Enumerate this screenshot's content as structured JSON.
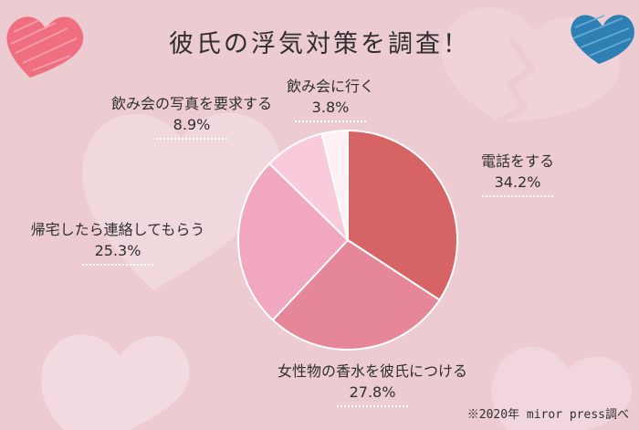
{
  "title": "彼氏の浮気対策を調査！",
  "source_note": "※2020年 miror press調べ",
  "colors": {
    "background": "#eccbd1",
    "soft_heart": "#f3dbe0",
    "left_heart": "#ef6f80",
    "right_heart": "#2e7fb3"
  },
  "chart_data": {
    "type": "pie",
    "title": "彼氏の浮気対策を調査！",
    "slices": [
      {
        "label": "電話をする",
        "value": 34.2,
        "value_label": "34.2%",
        "color": "#d66464"
      },
      {
        "label": "女性物の香水を彼氏につける",
        "value": 27.8,
        "value_label": "27.8%",
        "color": "#e58799"
      },
      {
        "label": "帰宅したら連絡してもらう",
        "value": 25.3,
        "value_label": "25.3%",
        "color": "#f0a7bf"
      },
      {
        "label": "飲み会の写真を要求する",
        "value": 8.9,
        "value_label": "8.9%",
        "color": "#f8cadb"
      },
      {
        "label": "飲み会に行く",
        "value": 3.8,
        "value_label": "3.8%",
        "color": "#fff0f5"
      }
    ]
  }
}
